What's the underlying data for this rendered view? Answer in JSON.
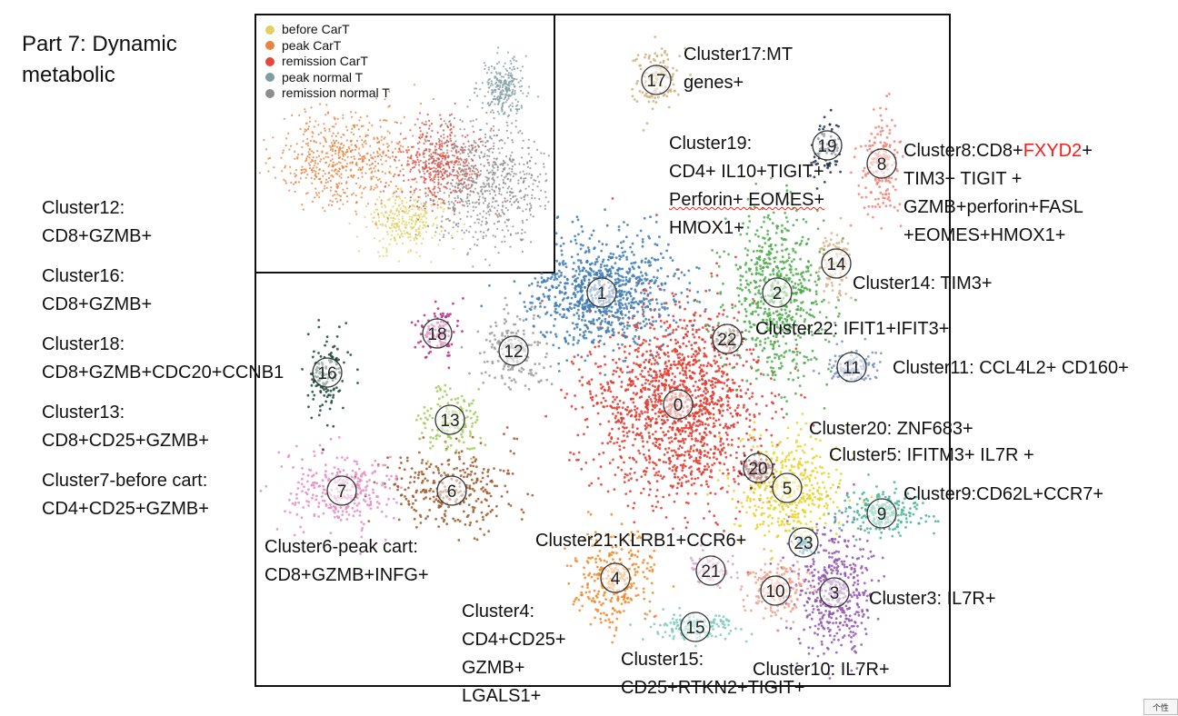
{
  "slide": {
    "title_lines": [
      "Part 7: Dynamic",
      "metabolic"
    ],
    "badge": "个性"
  },
  "inset_legend": {
    "items": [
      {
        "label": "before CarT",
        "color": "#e3d060"
      },
      {
        "label": "peak CarT",
        "color": "#e8823e"
      },
      {
        "label": "remission CarT",
        "color": "#e2483c"
      },
      {
        "label": "peak normal T",
        "color": "#7f9ea4"
      },
      {
        "label": "remission normal T",
        "color": "#8d8d8d"
      }
    ]
  },
  "left_annotations": [
    {
      "lines": [
        "Cluster12:",
        "CD8+GZMB+"
      ]
    },
    {
      "lines": [
        "Cluster16:",
        "CD8+GZMB+"
      ]
    },
    {
      "lines": [
        "Cluster18:",
        "CD8+GZMB+CDC20+CCNB1"
      ]
    },
    {
      "lines": [
        "Cluster13:",
        "CD8+CD25+GZMB+"
      ]
    },
    {
      "lines": [
        "Cluster7-before cart:",
        "CD4+CD25+GZMB+"
      ]
    }
  ],
  "plot_annotations": {
    "c17": [
      "Cluster17:MT",
      "genes+"
    ],
    "c19": [
      "Cluster19:",
      "CD4+ IL10+TIGIT+",
      "Perforin+ EOMES+",
      "HMOX1+"
    ],
    "c8": {
      "prefix": "Cluster8:CD8+",
      "highlight": "FXYD2",
      "suffix": "+",
      "rest": [
        "TIM3+ TIGIT +",
        "GZMB+perforin+FASL",
        "+EOMES+HMOX1+"
      ]
    },
    "c14": "Cluster14: TIM3+",
    "c22": "Cluster22: IFIT1+IFIT3+",
    "c11": "Cluster11: CCL4L2+ CD160+",
    "c20": "Cluster20: ZNF683+",
    "c5": "Cluster5: IFITM3+ IL7R +",
    "c9": "Cluster9:CD62L+CCR7+",
    "c21": "Cluster21:KLRB1+CCR6+",
    "c3": "Cluster3: IL7R+",
    "c10": "Cluster10: IL7R+",
    "c6": [
      "Cluster6-peak cart:",
      "CD8+GZMB+INFG+"
    ],
    "c4": [
      "Cluster4:",
      "CD4+CD25+",
      "GZMB+",
      "LGALS1+"
    ],
    "c15": [
      "Cluster15:",
      "CD25+RTKN2+TIGIT+"
    ]
  },
  "chart_data": [
    {
      "type": "scatter",
      "title": "",
      "xlabel": "",
      "ylabel": "",
      "series": [
        {
          "name": "0",
          "color": "#e03a2e",
          "center": [
            746,
            445
          ],
          "spread": [
            62,
            72
          ],
          "count": 1500
        },
        {
          "name": "1",
          "color": "#3d7bb5",
          "center": [
            662,
            322
          ],
          "spread": [
            55,
            42
          ],
          "count": 900
        },
        {
          "name": "2",
          "color": "#4cad4a",
          "center": [
            855,
            322
          ],
          "spread": [
            38,
            60
          ],
          "count": 650
        },
        {
          "name": "3",
          "color": "#9454b0",
          "center": [
            918,
            652
          ],
          "spread": [
            28,
            45
          ],
          "count": 450
        },
        {
          "name": "4",
          "color": "#f08a2c",
          "center": [
            677,
            636
          ],
          "spread": [
            28,
            35
          ],
          "count": 300
        },
        {
          "name": "5",
          "color": "#e8d32c",
          "center": [
            866,
            537
          ],
          "spread": [
            38,
            38
          ],
          "count": 450
        },
        {
          "name": "6",
          "color": "#a0582a",
          "center": [
            497,
            540
          ],
          "spread": [
            48,
            28
          ],
          "count": 300
        },
        {
          "name": "7",
          "color": "#e58ec4",
          "center": [
            376,
            540
          ],
          "spread": [
            38,
            28
          ],
          "count": 300
        },
        {
          "name": "8",
          "color": "#f28474",
          "center": [
            970,
            180
          ],
          "spread": [
            14,
            42
          ],
          "count": 180
        },
        {
          "name": "9",
          "color": "#45b592",
          "center": [
            970,
            565
          ],
          "spread": [
            28,
            16
          ],
          "count": 220
        },
        {
          "name": "10",
          "color": "#f0a08c",
          "center": [
            853,
            650
          ],
          "spread": [
            22,
            20
          ],
          "count": 180
        },
        {
          "name": "11",
          "color": "#7b93c9",
          "center": [
            937,
            404
          ],
          "spread": [
            20,
            12
          ],
          "count": 120
        },
        {
          "name": "12",
          "color": "#9d9d9d",
          "center": [
            565,
            386
          ],
          "spread": [
            26,
            28
          ],
          "count": 180
        },
        {
          "name": "13",
          "color": "#9fce5a",
          "center": [
            495,
            462
          ],
          "spread": [
            22,
            24
          ],
          "count": 150
        },
        {
          "name": "14",
          "color": "#d8b48a",
          "center": [
            920,
            290
          ],
          "spread": [
            12,
            30
          ],
          "count": 100
        },
        {
          "name": "15",
          "color": "#7bcbc0",
          "center": [
            765,
            690
          ],
          "spread": [
            32,
            10
          ],
          "count": 150
        },
        {
          "name": "16",
          "color": "#1b4a3a",
          "center": [
            360,
            410
          ],
          "spread": [
            14,
            30
          ],
          "count": 140
        },
        {
          "name": "17",
          "color": "#d2b07a",
          "center": [
            722,
            88
          ],
          "spread": [
            16,
            22
          ],
          "count": 130
        },
        {
          "name": "18",
          "color": "#b8298a",
          "center": [
            481,
            367
          ],
          "spread": [
            14,
            18
          ],
          "count": 110
        },
        {
          "name": "19",
          "color": "#1f2c4e",
          "center": [
            910,
            160
          ],
          "spread": [
            12,
            20
          ],
          "count": 80
        },
        {
          "name": "20",
          "color": "#6e0f24",
          "center": [
            834,
            515
          ],
          "spread": [
            12,
            10
          ],
          "count": 90
        },
        {
          "name": "21",
          "color": "#e0a0c6",
          "center": [
            782,
            628
          ],
          "spread": [
            16,
            12
          ],
          "count": 80
        },
        {
          "name": "22",
          "color": "#5b3c1e",
          "center": [
            800,
            373
          ],
          "spread": [
            12,
            10
          ],
          "count": 40
        },
        {
          "name": "23",
          "color": "#2c8e9e",
          "center": [
            884,
            597
          ],
          "spread": [
            8,
            8
          ],
          "count": 40
        }
      ]
    },
    {
      "type": "scatter",
      "title": "",
      "series": [
        {
          "name": "before CarT",
          "color": "#e3d060",
          "center": [
            448,
            245
          ],
          "spread": [
            26,
            22
          ],
          "count": 300
        },
        {
          "name": "peak CarT",
          "color": "#e8823e",
          "center": [
            382,
            175
          ],
          "spread": [
            52,
            35
          ],
          "count": 600
        },
        {
          "name": "remission CarT",
          "color": "#e2483c",
          "center": [
            483,
            180
          ],
          "spread": [
            30,
            30
          ],
          "count": 450
        },
        {
          "name": "peak normal T",
          "color": "#7f9ea4",
          "center": [
            555,
            95
          ],
          "spread": [
            16,
            20
          ],
          "count": 250
        },
        {
          "name": "remission normal T",
          "color": "#8d8d8d",
          "center": [
            535,
            200
          ],
          "spread": [
            45,
            45
          ],
          "count": 700
        }
      ]
    }
  ]
}
